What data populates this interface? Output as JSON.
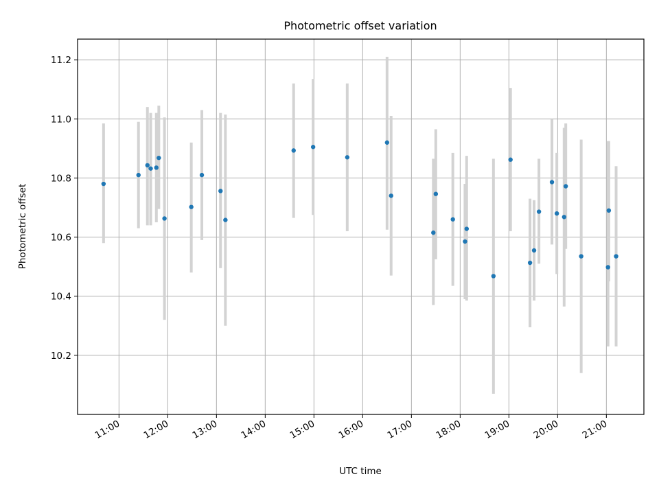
{
  "chart_data": {
    "type": "scatter",
    "title": "Photometric offset variation",
    "xlabel": "UTC time",
    "ylabel": "Photometric offset",
    "x_tick_labels": [
      "11:00",
      "12:00",
      "13:00",
      "14:00",
      "15:00",
      "16:00",
      "17:00",
      "18:00",
      "19:00",
      "20:00",
      "21:00"
    ],
    "x_ticks_hours": [
      11,
      12,
      13,
      14,
      15,
      16,
      17,
      18,
      19,
      20,
      21
    ],
    "y_ticks": [
      10.2,
      10.4,
      10.6,
      10.8,
      11.0,
      11.2
    ],
    "y_tick_labels": [
      "10.2",
      "10.4",
      "10.6",
      "10.8",
      "11.0",
      "11.2"
    ],
    "xlim_hours": [
      10.15,
      21.77
    ],
    "ylim": [
      10.0,
      11.27
    ],
    "grid": true,
    "colors": {
      "point": "#1f77b4",
      "errorbar": "#d3d3d3"
    },
    "points": [
      {
        "x": "10:41",
        "y": 10.78,
        "low": 10.58,
        "high": 10.985
      },
      {
        "x": "11:24",
        "y": 10.81,
        "low": 10.63,
        "high": 10.99
      },
      {
        "x": "11:35",
        "y": 10.843,
        "low": 10.64,
        "high": 11.04
      },
      {
        "x": "11:39",
        "y": 10.832,
        "low": 10.64,
        "high": 11.02
      },
      {
        "x": "11:46",
        "y": 10.835,
        "low": 10.65,
        "high": 11.02
      },
      {
        "x": "11:49",
        "y": 10.868,
        "low": 10.695,
        "high": 11.045
      },
      {
        "x": "11:56",
        "y": 10.663,
        "low": 10.32,
        "high": 11.005
      },
      {
        "x": "12:29",
        "y": 10.702,
        "low": 10.48,
        "high": 10.92
      },
      {
        "x": "12:42",
        "y": 10.81,
        "low": 10.59,
        "high": 11.03
      },
      {
        "x": "13:05",
        "y": 10.756,
        "low": 10.495,
        "high": 11.02
      },
      {
        "x": "13:11",
        "y": 10.658,
        "low": 10.3,
        "high": 11.015
      },
      {
        "x": "14:35",
        "y": 10.893,
        "low": 10.665,
        "high": 11.12
      },
      {
        "x": "14:59",
        "y": 10.905,
        "low": 10.675,
        "high": 11.135
      },
      {
        "x": "15:41",
        "y": 10.87,
        "low": 10.62,
        "high": 11.12
      },
      {
        "x": "16:30",
        "y": 10.92,
        "low": 10.625,
        "high": 11.21
      },
      {
        "x": "16:35",
        "y": 10.74,
        "low": 10.47,
        "high": 11.01
      },
      {
        "x": "17:27",
        "y": 10.615,
        "low": 10.37,
        "high": 10.865
      },
      {
        "x": "17:30",
        "y": 10.746,
        "low": 10.525,
        "high": 10.965
      },
      {
        "x": "17:51",
        "y": 10.66,
        "low": 10.435,
        "high": 10.885
      },
      {
        "x": "18:06",
        "y": 10.585,
        "low": 10.39,
        "high": 10.78
      },
      {
        "x": "18:08",
        "y": 10.628,
        "low": 10.385,
        "high": 10.875
      },
      {
        "x": "18:41",
        "y": 10.468,
        "low": 10.07,
        "high": 10.865
      },
      {
        "x": "19:02",
        "y": 10.862,
        "low": 10.62,
        "high": 11.105
      },
      {
        "x": "19:26",
        "y": 10.513,
        "low": 10.295,
        "high": 10.73
      },
      {
        "x": "19:31",
        "y": 10.555,
        "low": 10.385,
        "high": 10.725
      },
      {
        "x": "19:37",
        "y": 10.686,
        "low": 10.51,
        "high": 10.865
      },
      {
        "x": "19:53",
        "y": 10.786,
        "low": 10.575,
        "high": 11.0
      },
      {
        "x": "19:59",
        "y": 10.68,
        "low": 10.475,
        "high": 10.885
      },
      {
        "x": "20:08",
        "y": 10.668,
        "low": 10.365,
        "high": 10.97
      },
      {
        "x": "20:10",
        "y": 10.772,
        "low": 10.56,
        "high": 10.985
      },
      {
        "x": "20:29",
        "y": 10.535,
        "low": 10.14,
        "high": 10.93
      },
      {
        "x": "21:02",
        "y": 10.498,
        "low": 10.23,
        "high": 10.925
      },
      {
        "x": "21:03",
        "y": 10.69,
        "low": 10.45,
        "high": 10.925
      },
      {
        "x": "21:12",
        "y": 10.535,
        "low": 10.23,
        "high": 10.84
      }
    ]
  }
}
